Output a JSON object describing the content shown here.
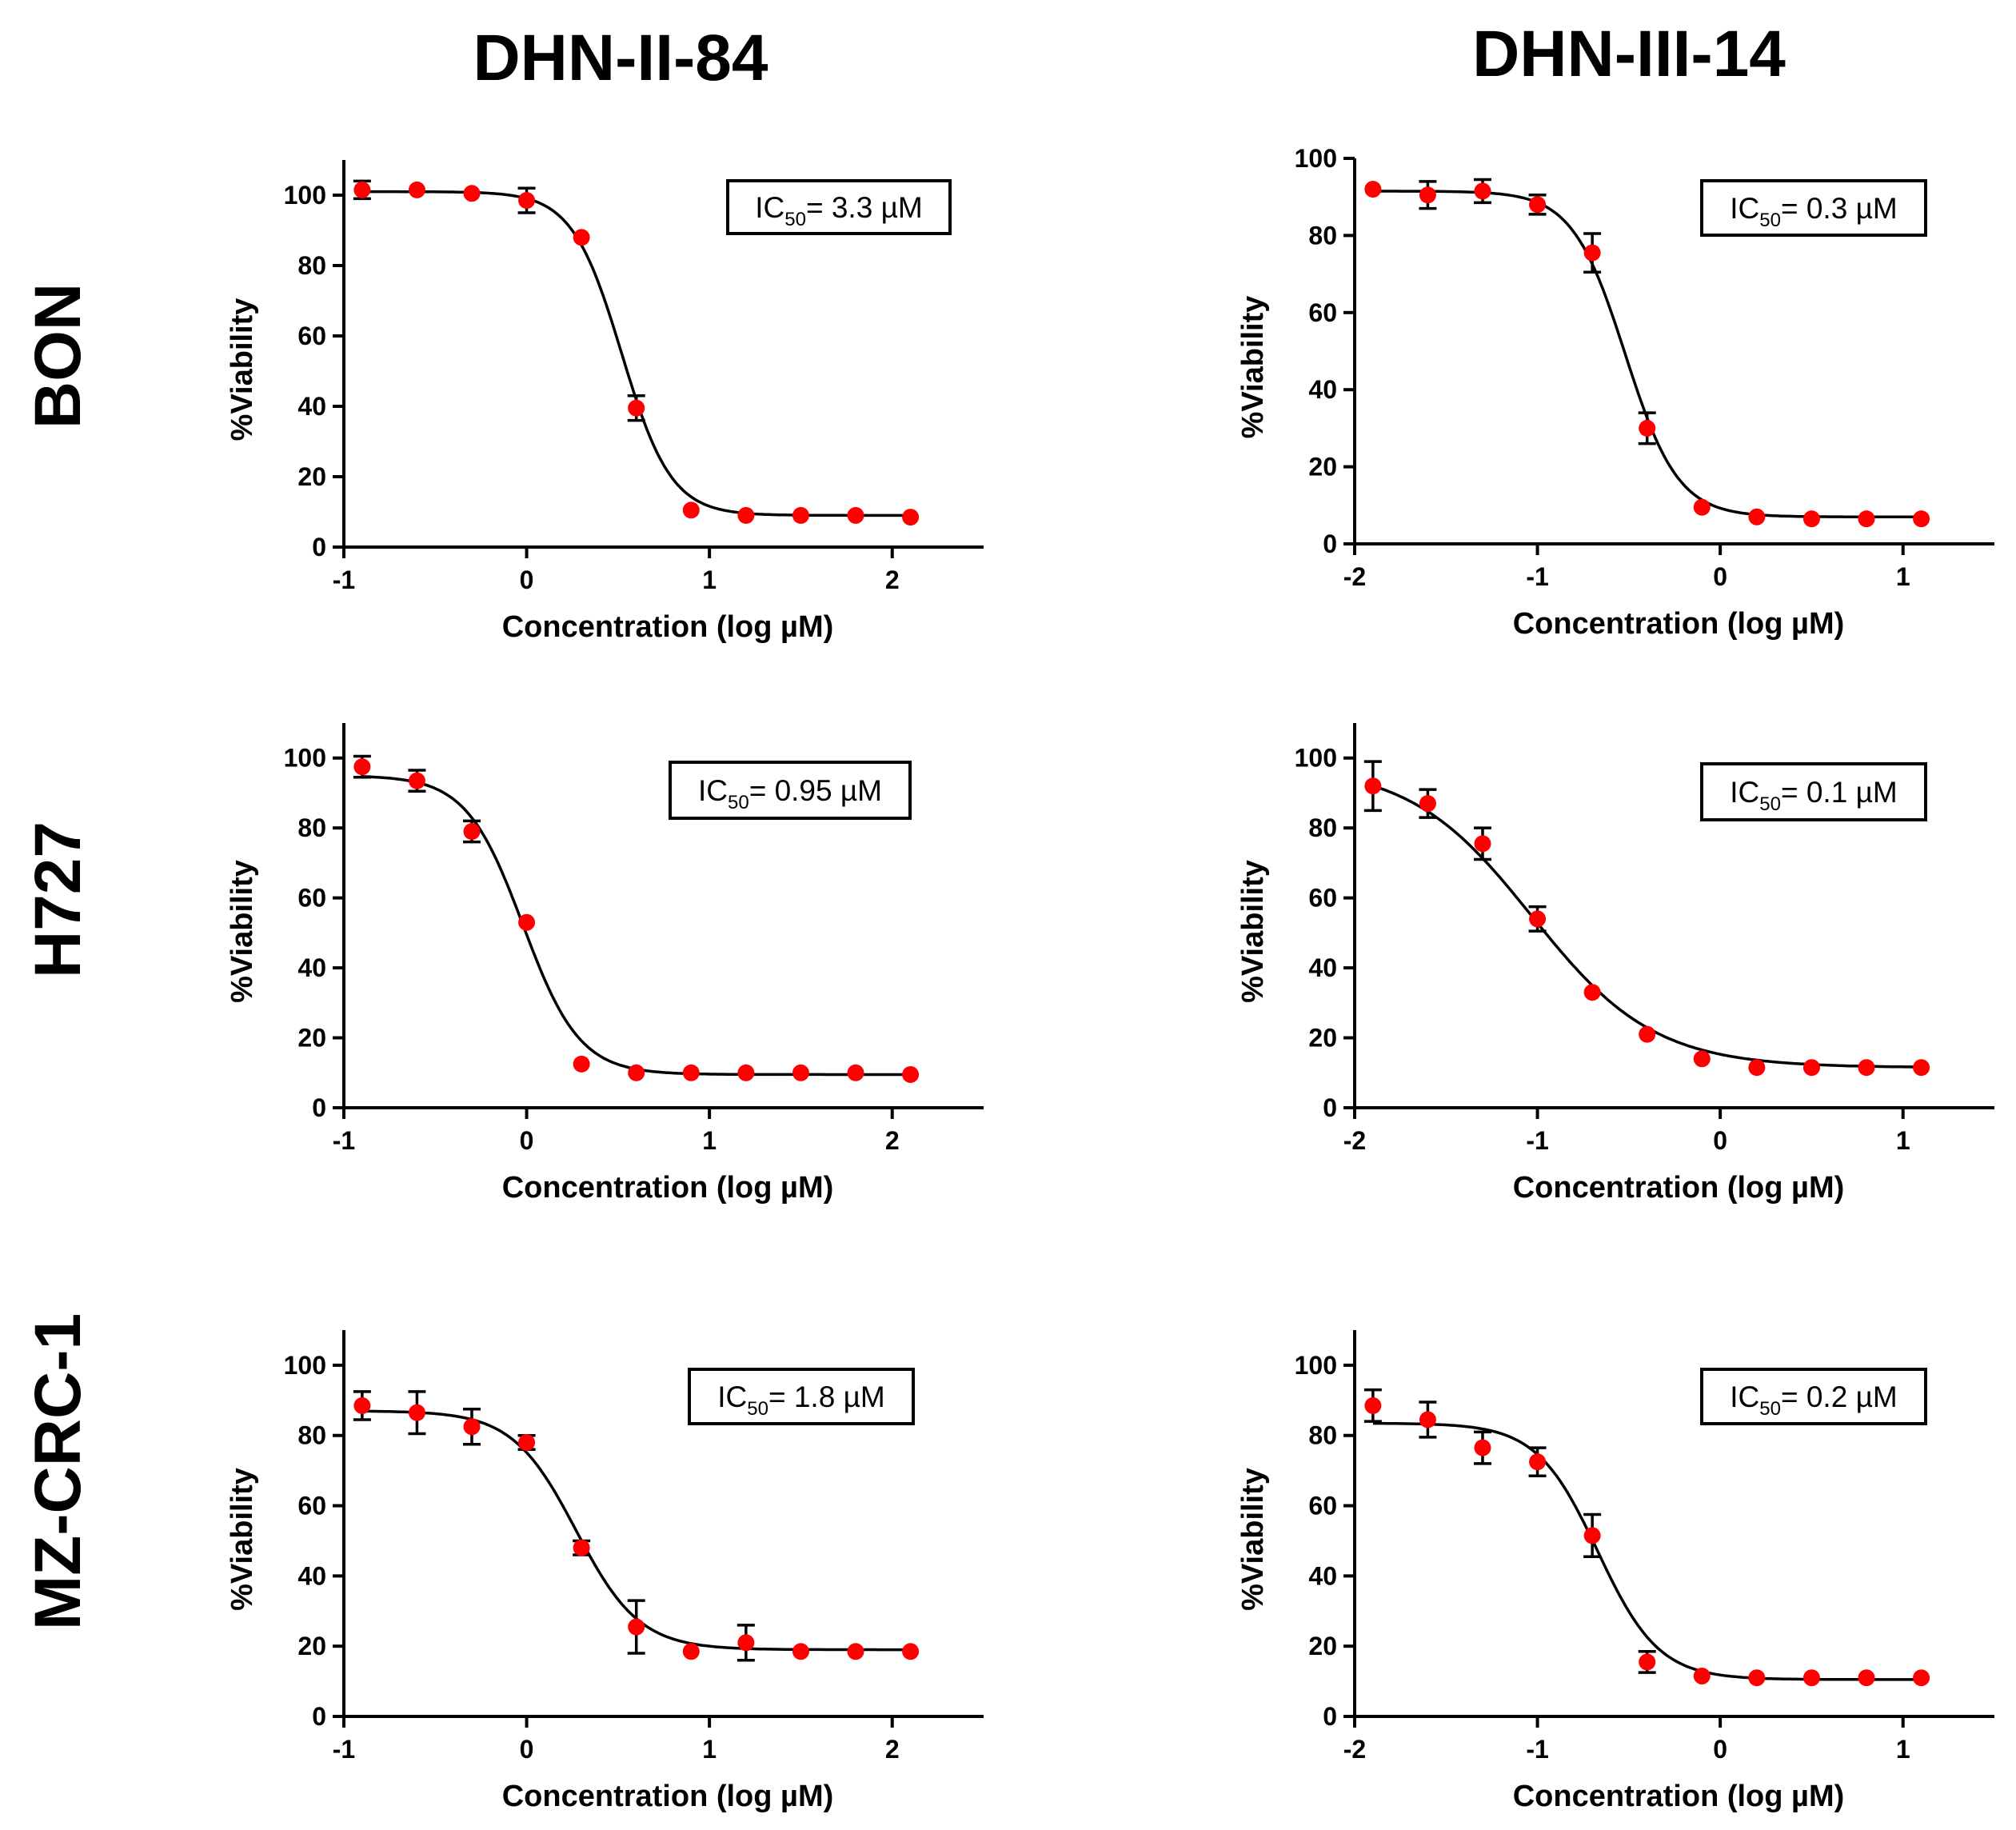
{
  "col_titles": [
    "DHN-II-84",
    "DHN-III-14"
  ],
  "row_labels": [
    "BON",
    "H727",
    "MZ-CRC-1"
  ],
  "chart_data": [
    {
      "type": "scatter",
      "row": 0,
      "col": 0,
      "xlabel": "Concentration (log µM)",
      "ylabel": "%Viability",
      "xlim": [
        -1,
        2.5
      ],
      "ylim": [
        0,
        110
      ],
      "xticks": [
        -1,
        0,
        1,
        2
      ],
      "yticks": [
        0,
        20,
        40,
        60,
        80,
        100
      ],
      "annotation": {
        "prefix": "IC",
        "sub": "50",
        "suffix": "= 3.3 µM"
      },
      "points": {
        "x": [
          -0.9,
          -0.6,
          -0.3,
          0.0,
          0.3,
          0.6,
          0.9,
          1.2,
          1.5,
          1.8,
          2.1
        ],
        "y": [
          101.5,
          101.5,
          100.5,
          98.5,
          88,
          39.5,
          10.5,
          9,
          9,
          9,
          8.5
        ],
        "err": [
          2.5,
          0,
          0,
          3.5,
          0,
          3.5,
          0,
          0,
          0,
          0,
          0
        ]
      },
      "fit": {
        "top": 101,
        "bottom": 9,
        "logIC50": 0.52,
        "hill": 3.2
      }
    },
    {
      "type": "scatter",
      "row": 0,
      "col": 1,
      "xlabel": "Concentration (log µM)",
      "ylabel": "%Viability",
      "xlim": [
        -2,
        1.5
      ],
      "ylim": [
        0,
        100
      ],
      "xticks": [
        -2,
        -1,
        0,
        1
      ],
      "yticks": [
        0,
        20,
        40,
        60,
        80,
        100
      ],
      "annotation": {
        "prefix": "IC",
        "sub": "50",
        "suffix": "= 0.3 µM"
      },
      "points": {
        "x": [
          -1.9,
          -1.6,
          -1.3,
          -1.0,
          -0.7,
          -0.4,
          -0.1,
          0.2,
          0.5,
          0.8,
          1.1
        ],
        "y": [
          92,
          90.5,
          91.5,
          88,
          75.5,
          30,
          9.5,
          7,
          6.5,
          6.5,
          6.5
        ],
        "err": [
          0,
          3.5,
          3,
          2.5,
          5,
          4,
          0,
          0,
          0,
          0,
          0
        ]
      },
      "fit": {
        "top": 91.5,
        "bottom": 7,
        "logIC50": -0.52,
        "hill": 3.0
      }
    },
    {
      "type": "scatter",
      "row": 1,
      "col": 0,
      "xlabel": "Concentration (log µM)",
      "ylabel": "%Viability",
      "xlim": [
        -1,
        2.5
      ],
      "ylim": [
        0,
        110
      ],
      "xticks": [
        -1,
        0,
        1,
        2
      ],
      "yticks": [
        0,
        20,
        40,
        60,
        80,
        100
      ],
      "annotation": {
        "prefix": "IC",
        "sub": "50",
        "suffix": "= 0.95 µM"
      },
      "points": {
        "x": [
          -0.9,
          -0.6,
          -0.3,
          0.0,
          0.3,
          0.6,
          0.9,
          1.2,
          1.5,
          1.8,
          2.1
        ],
        "y": [
          97.5,
          93.5,
          79,
          53,
          12.5,
          10,
          10,
          10,
          10,
          10,
          9.5
        ],
        "err": [
          3,
          3,
          3,
          0,
          0,
          0,
          0,
          0,
          0,
          0,
          0
        ]
      },
      "fit": {
        "top": 95,
        "bottom": 9.5,
        "logIC50": -0.02,
        "hill": 2.8
      }
    },
    {
      "type": "scatter",
      "row": 1,
      "col": 1,
      "xlabel": "Concentration (log µM)",
      "ylabel": "%Viability",
      "xlim": [
        -2,
        1.5
      ],
      "ylim": [
        0,
        110
      ],
      "xticks": [
        -2,
        -1,
        0,
        1
      ],
      "yticks": [
        0,
        20,
        40,
        60,
        80,
        100
      ],
      "annotation": {
        "prefix": "IC",
        "sub": "50",
        "suffix": "= 0.1 µM"
      },
      "points": {
        "x": [
          -1.9,
          -1.6,
          -1.3,
          -1.0,
          -0.7,
          -0.4,
          -0.1,
          0.2,
          0.5,
          0.8,
          1.1
        ],
        "y": [
          92,
          87,
          75.5,
          54,
          33,
          21,
          14,
          11.5,
          11.5,
          11.5,
          11.5
        ],
        "err": [
          7,
          4,
          4.5,
          3.5,
          0,
          0,
          0,
          0,
          0,
          0,
          0
        ]
      },
      "fit": {
        "top": 98,
        "bottom": 11.5,
        "logIC50": -1.03,
        "hill": 1.3
      }
    },
    {
      "type": "scatter",
      "row": 2,
      "col": 0,
      "xlabel": "Concentration (log µM)",
      "ylabel": "%Viability",
      "xlim": [
        -1,
        2.5
      ],
      "ylim": [
        0,
        110
      ],
      "xticks": [
        -1,
        0,
        1,
        2
      ],
      "yticks": [
        0,
        20,
        40,
        60,
        80,
        100
      ],
      "annotation": {
        "prefix": "IC",
        "sub": "50",
        "suffix": "= 1.8 µM"
      },
      "points": {
        "x": [
          -0.9,
          -0.6,
          -0.3,
          0.0,
          0.3,
          0.6,
          0.9,
          1.2,
          1.5,
          1.8,
          2.1
        ],
        "y": [
          88.5,
          86.5,
          82.5,
          78,
          48,
          25.5,
          18.5,
          21,
          18.5,
          18.5,
          18.5
        ],
        "err": [
          4,
          6,
          5,
          2,
          2,
          7.5,
          0,
          5,
          0,
          0,
          0
        ]
      },
      "fit": {
        "top": 87,
        "bottom": 19,
        "logIC50": 0.27,
        "hill": 2.5
      }
    },
    {
      "type": "scatter",
      "row": 2,
      "col": 1,
      "xlabel": "Concentration (log µM)",
      "ylabel": "%Viability",
      "xlim": [
        -2,
        1.5
      ],
      "ylim": [
        0,
        110
      ],
      "xticks": [
        -2,
        -1,
        0,
        1
      ],
      "yticks": [
        0,
        20,
        40,
        60,
        80,
        100
      ],
      "annotation": {
        "prefix": "IC",
        "sub": "50",
        "suffix": "= 0.2 µM"
      },
      "points": {
        "x": [
          -1.9,
          -1.6,
          -1.3,
          -1.0,
          -0.7,
          -0.4,
          -0.1,
          0.2,
          0.5,
          0.8,
          1.1
        ],
        "y": [
          88.5,
          84.5,
          76.5,
          72.5,
          51.5,
          15.5,
          11.5,
          11,
          11,
          11,
          11
        ],
        "err": [
          4.5,
          5,
          4.5,
          4,
          6,
          3,
          0,
          0,
          0,
          0,
          0
        ]
      },
      "fit": {
        "top": 83.5,
        "bottom": 10.5,
        "logIC50": -0.67,
        "hill": 2.6
      }
    }
  ],
  "colors": {
    "point": "#ff0000",
    "line": "#000000",
    "axis": "#000000"
  }
}
